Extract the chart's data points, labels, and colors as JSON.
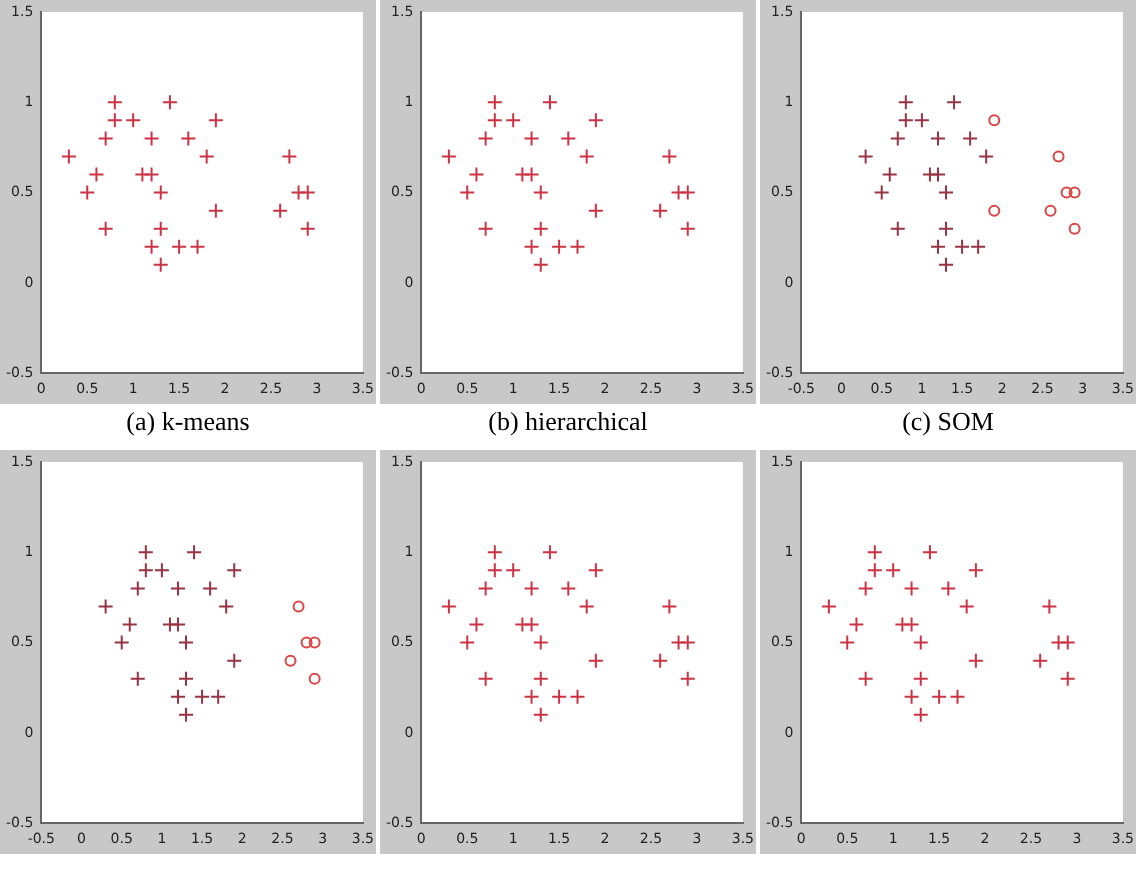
{
  "chart_data": [
    {
      "type": "scatter",
      "title": "(a) k-means",
      "xlim": [
        0,
        3.5
      ],
      "ylim": [
        -0.5,
        1.5
      ],
      "xticks": [
        0,
        0.5,
        1,
        1.5,
        2,
        2.5,
        3,
        3.5
      ],
      "yticks": [
        -0.5,
        0,
        0.5,
        1,
        1.5
      ],
      "grid": false,
      "legend": false,
      "series": [
        {
          "color": "#cc3344",
          "marker": "cross",
          "x": [
            0.3,
            0.5,
            0.6,
            0.7,
            0.7,
            0.8,
            0.8,
            1.0,
            1.1,
            1.2,
            1.2,
            1.2,
            1.3,
            1.3,
            1.3,
            1.4,
            1.5,
            1.6,
            1.7,
            1.8,
            1.9,
            1.9,
            2.6,
            2.7,
            2.8,
            2.9,
            2.9
          ],
          "values": [
            0.7,
            0.5,
            0.6,
            0.8,
            0.3,
            1.0,
            0.9,
            0.9,
            0.6,
            0.6,
            0.8,
            0.2,
            0.5,
            0.3,
            0.1,
            1.0,
            0.2,
            0.8,
            0.2,
            0.7,
            0.9,
            0.4,
            0.4,
            0.7,
            0.5,
            0.5,
            0.3
          ]
        }
      ]
    },
    {
      "type": "scatter",
      "title": "(b) hierarchical",
      "xlim": [
        0,
        3.5
      ],
      "ylim": [
        -0.5,
        1.5
      ],
      "xticks": [
        0,
        0.5,
        1,
        1.5,
        2,
        2.5,
        3,
        3.5
      ],
      "yticks": [
        -0.5,
        0,
        0.5,
        1,
        1.5
      ],
      "grid": false,
      "legend": false,
      "series": [
        {
          "color": "#cc3344",
          "marker": "cross",
          "x": [
            0.3,
            0.5,
            0.6,
            0.7,
            0.7,
            0.8,
            0.8,
            1.0,
            1.1,
            1.2,
            1.2,
            1.2,
            1.3,
            1.3,
            1.3,
            1.4,
            1.5,
            1.6,
            1.7,
            1.8,
            1.9,
            1.9,
            2.6,
            2.7,
            2.8,
            2.9,
            2.9
          ],
          "values": [
            0.7,
            0.5,
            0.6,
            0.8,
            0.3,
            1.0,
            0.9,
            0.9,
            0.6,
            0.6,
            0.8,
            0.2,
            0.5,
            0.3,
            0.1,
            1.0,
            0.2,
            0.8,
            0.2,
            0.7,
            0.9,
            0.4,
            0.4,
            0.7,
            0.5,
            0.5,
            0.3
          ]
        }
      ]
    },
    {
      "type": "scatter",
      "title": "(c) SOM",
      "xlim": [
        -0.5,
        3.5
      ],
      "ylim": [
        -0.5,
        1.5
      ],
      "xticks": [
        -0.5,
        0,
        0.5,
        1,
        1.5,
        2,
        2.5,
        3,
        3.5
      ],
      "yticks": [
        -0.5,
        0,
        0.5,
        1,
        1.5
      ],
      "grid": false,
      "legend": false,
      "series": [
        {
          "color": "#993344",
          "marker": "cross",
          "x": [
            0.3,
            0.5,
            0.6,
            0.7,
            0.7,
            0.8,
            0.8,
            1.0,
            1.1,
            1.2,
            1.2,
            1.2,
            1.3,
            1.3,
            1.3,
            1.4,
            1.5,
            1.6,
            1.7,
            1.8
          ],
          "values": [
            0.7,
            0.5,
            0.6,
            0.8,
            0.3,
            1.0,
            0.9,
            0.9,
            0.6,
            0.6,
            0.8,
            0.2,
            0.5,
            0.3,
            0.1,
            1.0,
            0.2,
            0.8,
            0.2,
            0.7
          ]
        },
        {
          "color": "#dd4444",
          "marker": "circle",
          "x": [
            1.9,
            1.9,
            2.6,
            2.7,
            2.8,
            2.9,
            2.9
          ],
          "values": [
            0.9,
            0.4,
            0.4,
            0.7,
            0.5,
            0.5,
            0.3
          ]
        }
      ]
    },
    {
      "type": "scatter",
      "xlim": [
        -0.5,
        3.5
      ],
      "ylim": [
        -0.5,
        1.5
      ],
      "xticks": [
        -0.5,
        0,
        0.5,
        1,
        1.5,
        2,
        2.5,
        3,
        3.5
      ],
      "yticks": [
        -0.5,
        0,
        0.5,
        1,
        1.5
      ],
      "grid": false,
      "legend": false,
      "series": [
        {
          "color": "#993344",
          "marker": "cross",
          "x": [
            0.3,
            0.5,
            0.6,
            0.7,
            0.7,
            0.8,
            0.8,
            1.0,
            1.1,
            1.2,
            1.2,
            1.2,
            1.3,
            1.3,
            1.3,
            1.4,
            1.5,
            1.6,
            1.7,
            1.8,
            1.9,
            1.9
          ],
          "values": [
            0.7,
            0.5,
            0.6,
            0.8,
            0.3,
            1.0,
            0.9,
            0.9,
            0.6,
            0.6,
            0.8,
            0.2,
            0.5,
            0.3,
            0.1,
            1.0,
            0.2,
            0.8,
            0.2,
            0.7,
            0.9,
            0.4
          ]
        },
        {
          "color": "#dd4444",
          "marker": "circle",
          "x": [
            2.6,
            2.7,
            2.8,
            2.9,
            2.9
          ],
          "values": [
            0.4,
            0.7,
            0.5,
            0.5,
            0.3
          ]
        }
      ]
    },
    {
      "type": "scatter",
      "xlim": [
        0,
        3.5
      ],
      "ylim": [
        -0.5,
        1.5
      ],
      "xticks": [
        0,
        0.5,
        1,
        1.5,
        2,
        2.5,
        3,
        3.5
      ],
      "yticks": [
        -0.5,
        0,
        0.5,
        1,
        1.5
      ],
      "grid": false,
      "legend": false,
      "series": [
        {
          "color": "#cc3344",
          "marker": "cross",
          "x": [
            0.3,
            0.5,
            0.6,
            0.7,
            0.7,
            0.8,
            0.8,
            1.0,
            1.1,
            1.2,
            1.2,
            1.2,
            1.3,
            1.3,
            1.3,
            1.4,
            1.5,
            1.6,
            1.7,
            1.8,
            1.9,
            1.9,
            2.6,
            2.7,
            2.8,
            2.9,
            2.9
          ],
          "values": [
            0.7,
            0.5,
            0.6,
            0.8,
            0.3,
            1.0,
            0.9,
            0.9,
            0.6,
            0.6,
            0.8,
            0.2,
            0.5,
            0.3,
            0.1,
            1.0,
            0.2,
            0.8,
            0.2,
            0.7,
            0.9,
            0.4,
            0.4,
            0.7,
            0.5,
            0.5,
            0.3
          ]
        }
      ]
    },
    {
      "type": "scatter",
      "xlim": [
        0,
        3.5
      ],
      "ylim": [
        -0.5,
        1.5
      ],
      "xticks": [
        0,
        0.5,
        1,
        1.5,
        2,
        2.5,
        3,
        3.5
      ],
      "yticks": [
        -0.5,
        0,
        0.5,
        1,
        1.5
      ],
      "grid": false,
      "legend": false,
      "series": [
        {
          "color": "#cc3344",
          "marker": "cross",
          "x": [
            0.3,
            0.5,
            0.6,
            0.7,
            0.7,
            0.8,
            0.8,
            1.0,
            1.1,
            1.2,
            1.2,
            1.2,
            1.3,
            1.3,
            1.3,
            1.4,
            1.5,
            1.6,
            1.7,
            1.8,
            1.9,
            1.9,
            2.6,
            2.7,
            2.8,
            2.9,
            2.9
          ],
          "values": [
            0.7,
            0.5,
            0.6,
            0.8,
            0.3,
            1.0,
            0.9,
            0.9,
            0.6,
            0.6,
            0.8,
            0.2,
            0.5,
            0.3,
            0.1,
            1.0,
            0.2,
            0.8,
            0.2,
            0.7,
            0.9,
            0.4,
            0.4,
            0.7,
            0.5,
            0.5,
            0.3
          ]
        }
      ]
    }
  ]
}
